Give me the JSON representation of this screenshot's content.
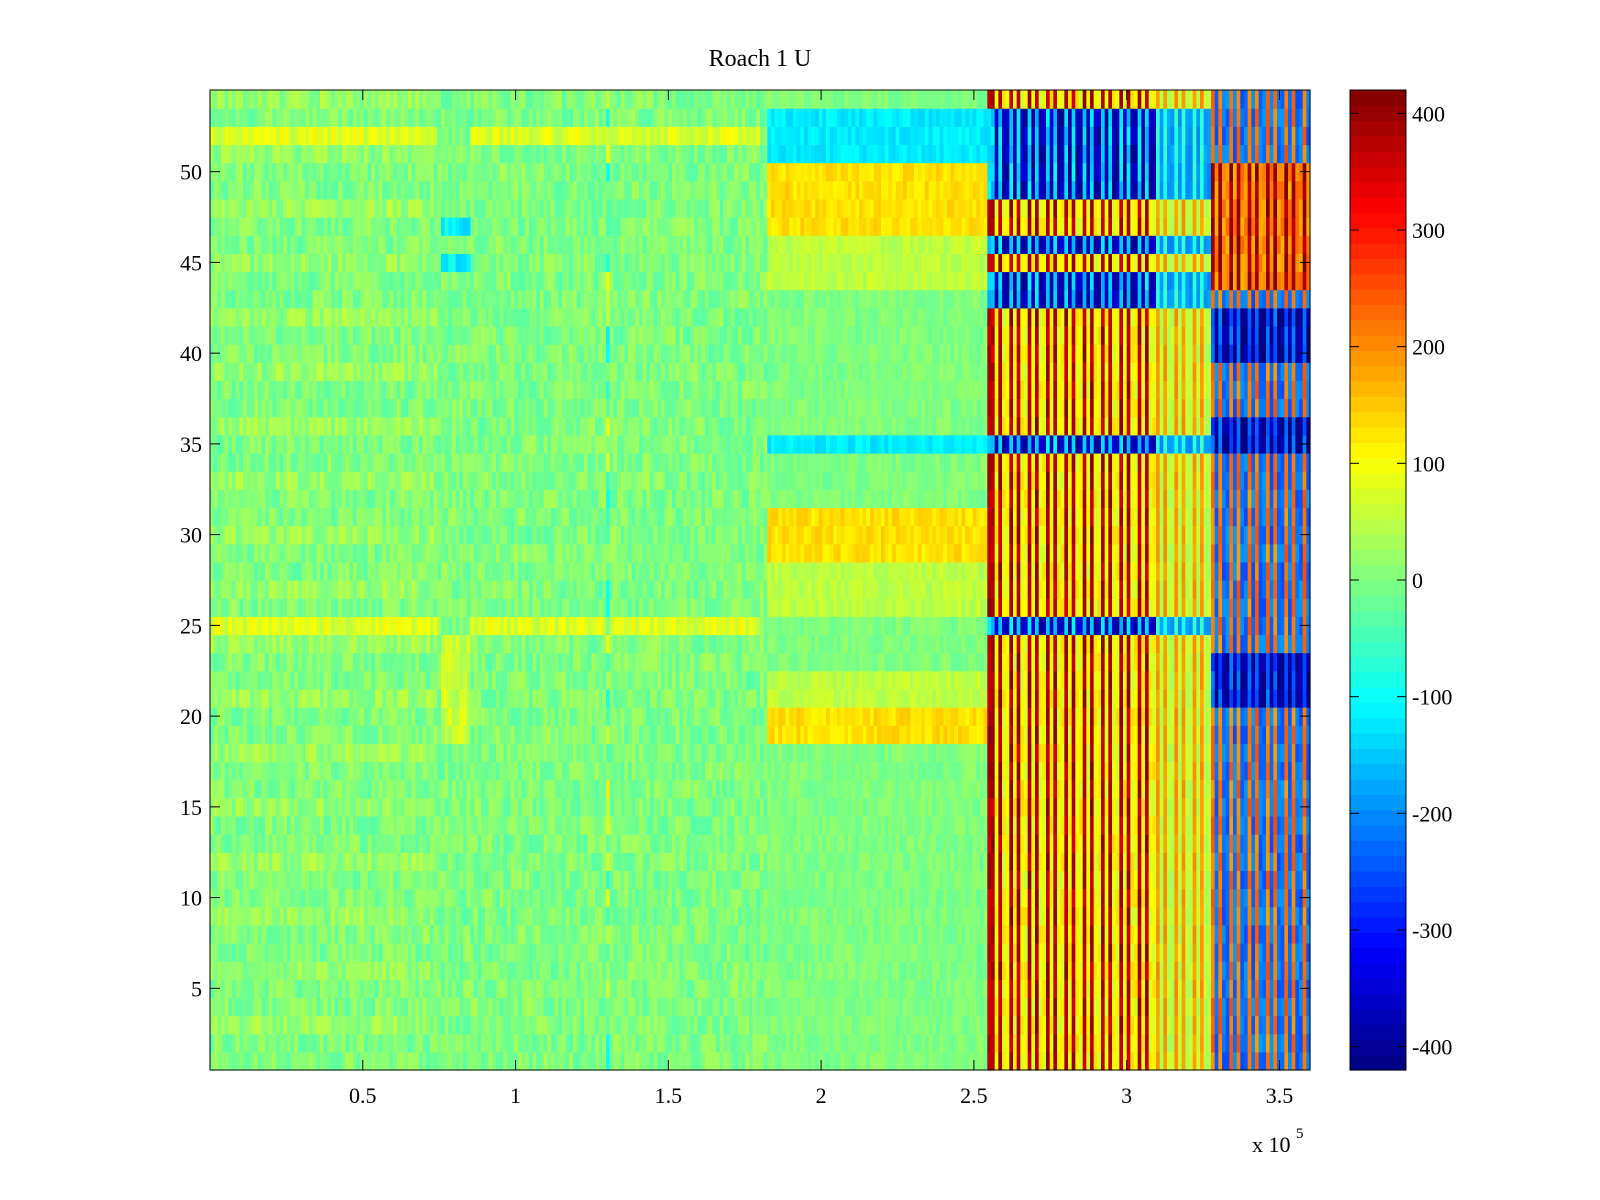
{
  "chart_data": {
    "type": "heatmap",
    "title": "Roach 1 U",
    "xlabel": "",
    "ylabel": "",
    "x_multiplier_label": {
      "base": "x 10",
      "exponent": "5"
    },
    "xlim": [
      0,
      3.6
    ],
    "ylim": [
      0.5,
      54.5
    ],
    "x_ticks": [
      0.5,
      1,
      1.5,
      2,
      2.5,
      3,
      3.5
    ],
    "x_tick_labels": [
      "0.5",
      "1",
      "1.5",
      "2",
      "2.5",
      "3",
      "3.5"
    ],
    "y_ticks": [
      5,
      10,
      15,
      20,
      25,
      30,
      35,
      40,
      45,
      50
    ],
    "y_tick_labels": [
      "5",
      "10",
      "15",
      "20",
      "25",
      "30",
      "35",
      "40",
      "45",
      "50"
    ],
    "rows": 54,
    "colormap": "jet",
    "colorbar": {
      "range": [
        -420,
        420
      ],
      "ticks": [
        -400,
        -300,
        -200,
        -100,
        0,
        100,
        200,
        300,
        400
      ],
      "tick_labels": [
        "-400",
        "-300",
        "-200",
        "-100",
        "0",
        "100",
        "200",
        "300",
        "400"
      ]
    },
    "regions_approx": [
      {
        "x_range": [
          0,
          1.83
        ],
        "rows": "1-54",
        "value_approx": 0,
        "note": "noisy near-zero baseline"
      },
      {
        "x_range": [
          0,
          0.75
        ],
        "rows": [
          25,
          52
        ],
        "value_approx": 80
      },
      {
        "x_range": [
          0.75,
          0.85
        ],
        "rows": [
          19,
          24
        ],
        "value_approx": 60
      },
      {
        "x_range": [
          0.75,
          0.85
        ],
        "rows": [
          45,
          48
        ],
        "value_approx": -110
      },
      {
        "x_range": [
          1.83,
          2.55
        ],
        "rows": [
          29,
          31,
          19,
          20,
          47,
          48
        ],
        "value_approx": 140
      },
      {
        "x_range": [
          1.83,
          2.55
        ],
        "rows": [
          35,
          51,
          52,
          53
        ],
        "value_approx": -120
      },
      {
        "x_range": [
          2.55,
          3.28
        ],
        "rows": "1-54",
        "value_approx": 260,
        "note": "alternating striped high values"
      },
      {
        "x_range": [
          2.55,
          3.28
        ],
        "rows": [
          25,
          43,
          44,
          46,
          49,
          50,
          51,
          52,
          53
        ],
        "value_approx": -300
      },
      {
        "x_range": [
          3.28,
          3.6
        ],
        "rows": [
          21,
          22,
          23,
          36,
          40,
          41,
          42
        ],
        "value_approx": -320
      },
      {
        "x_range": [
          3.28,
          3.6
        ],
        "rows": [
          44,
          45,
          46,
          47,
          48,
          49,
          50
        ],
        "value_approx": 320
      }
    ]
  }
}
